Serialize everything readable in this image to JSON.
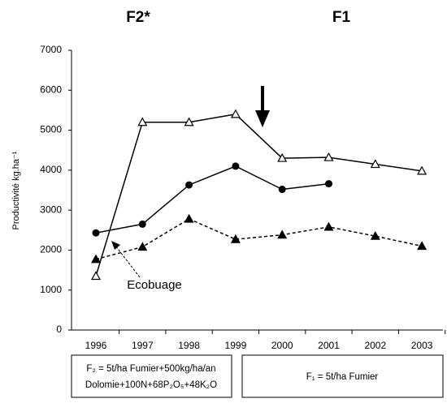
{
  "chart_data": {
    "type": "line",
    "annotations": [
      "F2*",
      "F1",
      "Ecobuage"
    ],
    "ylabel": "Productivité kg.ha⁻¹",
    "categories": [
      "1996",
      "1997",
      "1998",
      "1999",
      "2000",
      "2001",
      "2002",
      "2003"
    ],
    "series": [
      {
        "color": "#000000",
        "marker": "open-triangle",
        "dashed": false,
        "values": [
          1350,
          5200,
          5200,
          5400,
          4300,
          4320,
          4150,
          3980
        ]
      },
      {
        "color": "#000000",
        "marker": "filled-circle",
        "dashed": false,
        "values": [
          2430,
          2650,
          3630,
          4100,
          3520,
          3660,
          null,
          null
        ]
      },
      {
        "color": "#000000",
        "marker": "filled-triangle",
        "dashed": true,
        "values": [
          1770,
          2080,
          2780,
          2270,
          2380,
          2580,
          2350,
          2100
        ]
      }
    ],
    "ylim": [
      0,
      7000
    ],
    "yticks": [
      0,
      1000,
      2000,
      3000,
      4000,
      5000,
      6000,
      7000
    ],
    "notes": {
      "f2": [
        "F₂ = 5t/ha Fumier+500kg/ha/an",
        "Dolomie+100N+68P₂O₅+48K₂O"
      ],
      "f1": "F₁ = 5t/ha Fumier"
    }
  }
}
